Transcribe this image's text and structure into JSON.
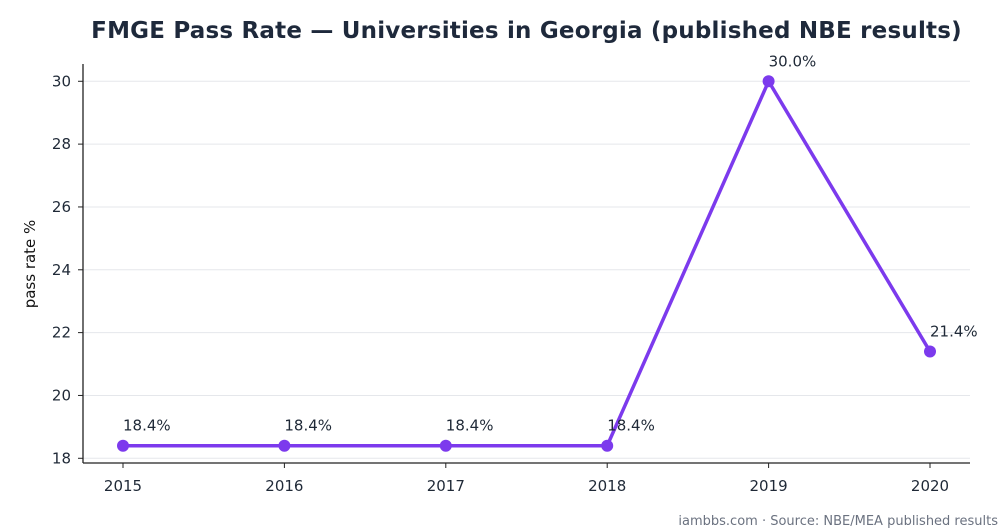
{
  "chart_data": {
    "type": "line",
    "title": "FMGE Pass Rate — Universities in Georgia (published NBE results)",
    "xlabel": "",
    "ylabel": "pass rate %",
    "x": [
      "2015",
      "2016",
      "2017",
      "2018",
      "2019",
      "2020"
    ],
    "series": [
      {
        "values": [
          18.4,
          18.4,
          18.4,
          18.4,
          30.0,
          21.4
        ],
        "labels": [
          "18.4%",
          "18.4%",
          "18.4%",
          "18.4%",
          "30.0%",
          "21.4%"
        ]
      }
    ],
    "yticks": [
      18,
      20,
      22,
      24,
      26,
      28,
      30
    ],
    "ylim": [
      17.85,
      30.55
    ],
    "grid": "horizontal",
    "colors": {
      "line": "#7c3aed",
      "grid": "#e5e7eb",
      "axis": "#222222",
      "text": "#1f2937"
    }
  },
  "footer": "iambbs.com · Source: NBE/MEA published results"
}
